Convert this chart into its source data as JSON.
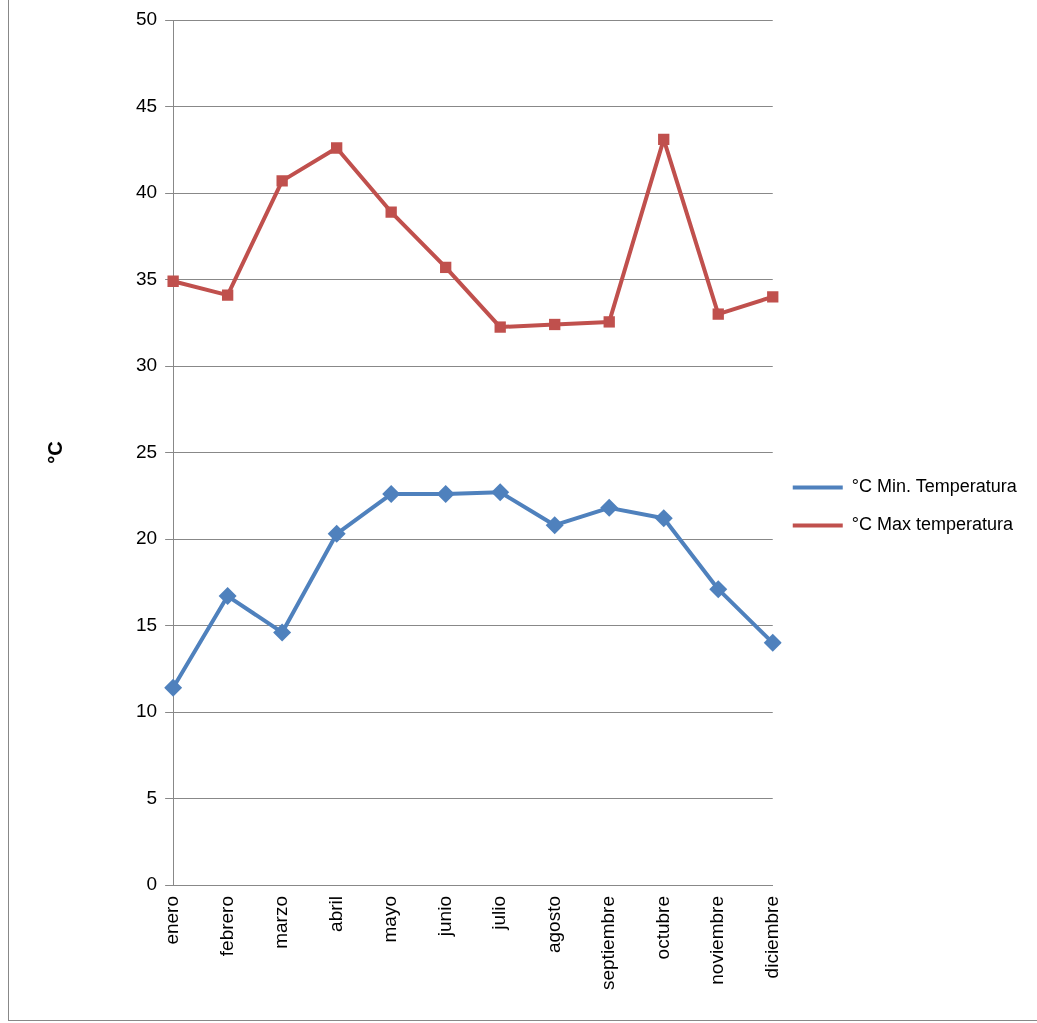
{
  "chart_data": {
    "type": "line",
    "ylabel": "°C",
    "categories": [
      "enero",
      "febrero",
      "marzo",
      "abril",
      "mayo",
      "junio",
      "julio",
      "agosto",
      "septiembre",
      "octubre",
      "noviembre",
      "diciembre"
    ],
    "series": [
      {
        "name": "°C Min. Temperatura",
        "color": "#4f81bd",
        "marker": "diamond",
        "values": [
          11.4,
          16.7,
          14.6,
          20.3,
          22.6,
          22.6,
          22.7,
          20.8,
          21.8,
          21.2,
          17.1,
          14.0
        ]
      },
      {
        "name": "°C Max temperatura",
        "color": "#c0504d",
        "marker": "square",
        "values": [
          34.9,
          34.1,
          40.7,
          42.6,
          38.9,
          35.7,
          32.25,
          32.4,
          32.55,
          43.1,
          33.0,
          34.0
        ]
      }
    ],
    "ylim": [
      0,
      50
    ],
    "yticks": [
      0,
      5,
      10,
      15,
      20,
      25,
      30,
      35,
      40,
      45,
      50
    ],
    "grid": "y",
    "legend": "right",
    "line_style": "solid"
  }
}
